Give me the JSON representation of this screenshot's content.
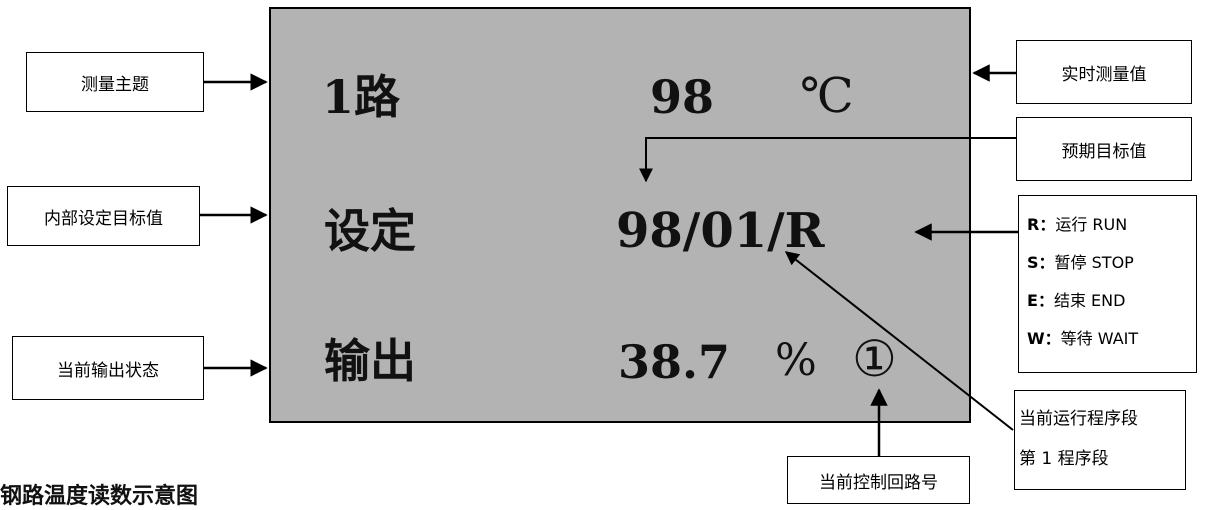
{
  "display": {
    "row1_label": "1路",
    "row1_value": "98",
    "row1_unit": "℃",
    "row2_label": "设定",
    "row2_value": "98/01/R",
    "row3_label": "输出",
    "row3_value": "38.7",
    "row3_unit": "%",
    "row3_loop": "①"
  },
  "annotations": {
    "measure_topic": "测量主题",
    "internal_setpoint": "内部设定目标值",
    "current_output": "当前输出状态",
    "realtime_value": "实时测量值",
    "expected_target": "预期目标值",
    "current_segment_line1": "当前运行程序段",
    "current_segment_line2": "第 1 程序段",
    "control_loop": "当前控制回路号"
  },
  "status_legend": [
    {
      "key": "R",
      "sep": "：",
      "desc": "运行 RUN"
    },
    {
      "key": "S",
      "sep": "：",
      "desc": "暂停 STOP"
    },
    {
      "key": "E",
      "sep": "：",
      "desc": "结束 END"
    },
    {
      "key": "W",
      "sep": "：",
      "desc": "等待 WAIT"
    }
  ],
  "caption": "钢路温度读数示意图",
  "colors": {
    "lcd_background": "#b3b3b3",
    "line": "#000000"
  }
}
